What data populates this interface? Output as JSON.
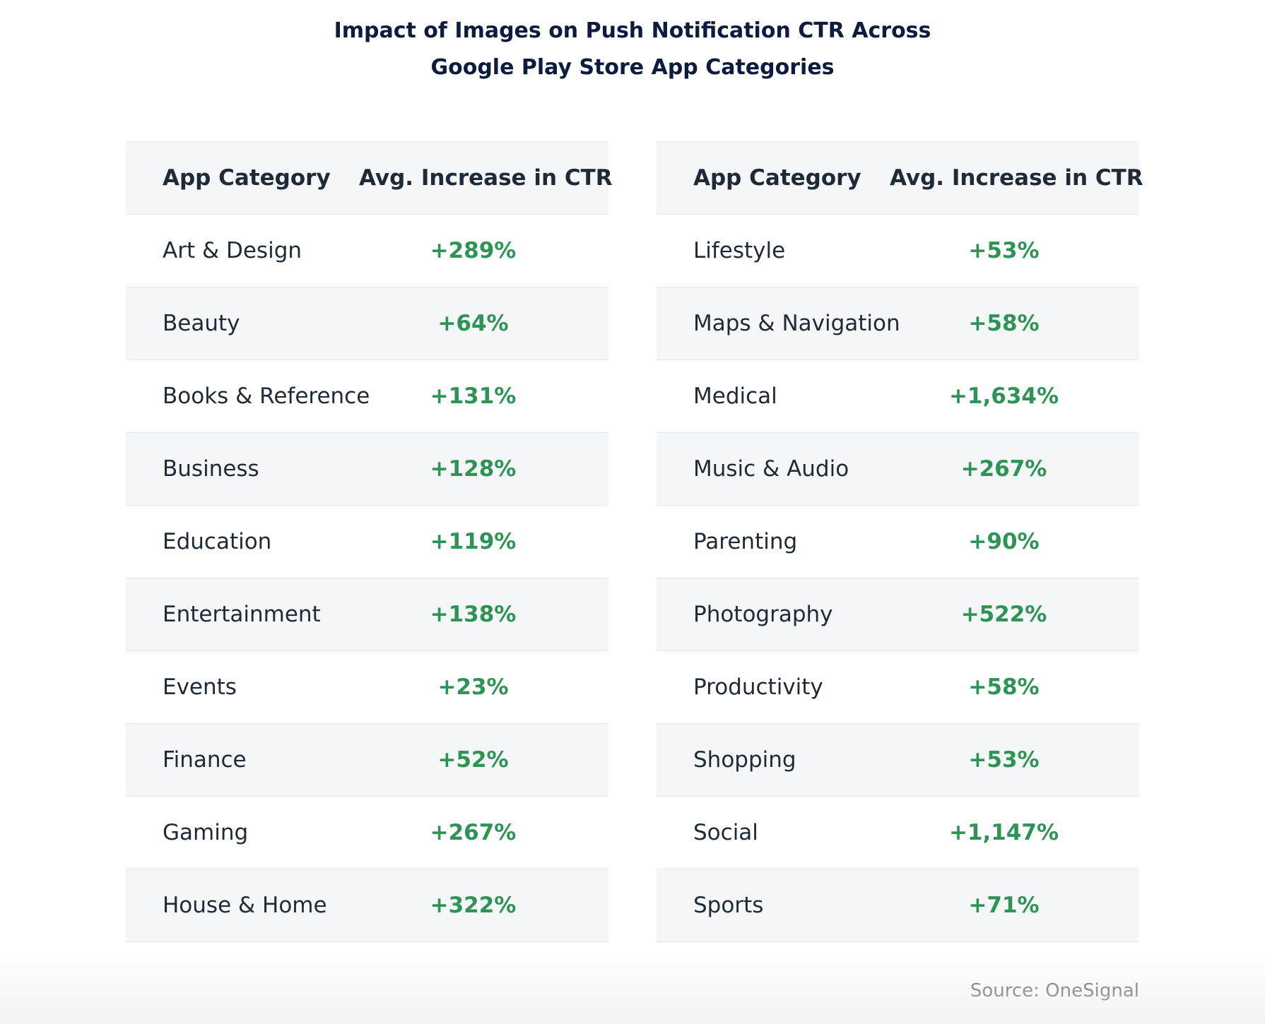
{
  "title": {
    "line1": "Impact of Images on Push Notification CTR Across",
    "line2": "Google Play Store App Categories"
  },
  "headers": {
    "category": "App Category",
    "value": "Avg. Increase in CTR"
  },
  "source": "Source: OneSignal",
  "colors": {
    "value_text": "#2e9456",
    "title_text": "#0d1b3e",
    "stripe": "#f5f6f8"
  },
  "chart_data": {
    "type": "table",
    "title": "Impact of Images on Push Notification CTR Across Google Play Store App Categories",
    "columns": [
      "App Category",
      "Avg. Increase in CTR"
    ],
    "tables": [
      {
        "rows": [
          {
            "category": "Art & Design",
            "value": "+289%"
          },
          {
            "category": "Beauty",
            "value": "+64%"
          },
          {
            "category": "Books & Reference",
            "value": "+131%"
          },
          {
            "category": "Business",
            "value": "+128%"
          },
          {
            "category": "Education",
            "value": "+119%"
          },
          {
            "category": "Entertainment",
            "value": "+138%"
          },
          {
            "category": "Events",
            "value": "+23%"
          },
          {
            "category": "Finance",
            "value": "+52%"
          },
          {
            "category": "Gaming",
            "value": "+267%"
          },
          {
            "category": "House & Home",
            "value": "+322%"
          }
        ]
      },
      {
        "rows": [
          {
            "category": "Lifestyle",
            "value": "+53%"
          },
          {
            "category": "Maps & Navigation",
            "value": "+58%"
          },
          {
            "category": "Medical",
            "value": "+1,634%"
          },
          {
            "category": "Music & Audio",
            "value": "+267%"
          },
          {
            "category": "Parenting",
            "value": "+90%"
          },
          {
            "category": "Photography",
            "value": "+522%"
          },
          {
            "category": "Productivity",
            "value": "+58%"
          },
          {
            "category": "Shopping",
            "value": "+53%"
          },
          {
            "category": "Social",
            "value": "+1,147%"
          },
          {
            "category": "Sports",
            "value": "+71%"
          }
        ]
      }
    ]
  }
}
